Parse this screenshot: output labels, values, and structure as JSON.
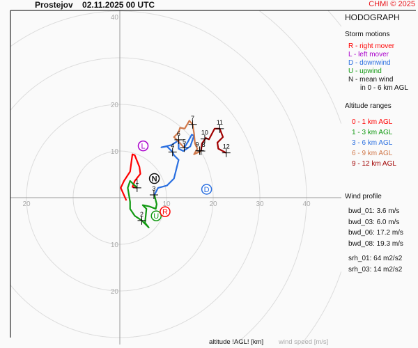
{
  "header": {
    "title": "Prostejov    02.11.2025 00 UTC",
    "copyright": "CHMI © 2025"
  },
  "legend": {
    "title": "HODOGRAPH",
    "storm_motions_title": "Storm motions",
    "storm_motions": [
      {
        "text": "R - right mover",
        "color": "#ff0000"
      },
      {
        "text": "L - left mover",
        "color": "#aa00cc"
      },
      {
        "text": "D - downwind",
        "color": "#2a6fe0"
      },
      {
        "text": "U - upwind",
        "color": "#119911"
      },
      {
        "text": "N - mean wind",
        "color": "#111111"
      },
      {
        "text": "in 0 - 6 km AGL",
        "color": "#111111"
      }
    ],
    "altitude_title": "Altitude ranges",
    "altitude_ranges": [
      {
        "text": "0 - 1 km AGL",
        "color": "#ff0000"
      },
      {
        "text": "1 - 3 km AGL",
        "color": "#119911"
      },
      {
        "text": "3 - 6 km AGL",
        "color": "#2a6fe0"
      },
      {
        "text": "6 - 9 km AGL",
        "color": "#d0784a"
      },
      {
        "text": "9 - 12 km AGL",
        "color": "#a00000"
      }
    ],
    "wind_profile_title": "Wind profile",
    "wind_profile": [
      "bwd_01: 3.6 m/s",
      "bwd_03: 6.0 m/s",
      "bwd_06: 17.2 m/s",
      "bwd_08: 19.3 m/s"
    ],
    "helicity": [
      "srh_01: 64 m2/s2",
      "srh_03: 14 m2/s2"
    ]
  },
  "footer": {
    "altitude_label": "altitude !AGL! [km]",
    "speed_label": "wind speed [m/s]"
  },
  "chart_data": {
    "type": "line",
    "title": "HODOGRAPH",
    "rings": [
      10,
      20,
      30,
      40,
      50,
      60,
      70
    ],
    "x_tick_labels": [
      {
        "v": -20,
        "t": "20"
      },
      {
        "v": 10,
        "t": "10"
      },
      {
        "v": 20,
        "t": "20"
      },
      {
        "v": 30,
        "t": "30"
      },
      {
        "v": 40,
        "t": "40"
      }
    ],
    "y_tick_labels": [
      {
        "v": 40,
        "t": "40"
      },
      {
        "v": 20,
        "t": "20"
      },
      {
        "v": 10,
        "t": "10"
      },
      {
        "v": -10,
        "t": "10"
      },
      {
        "v": -20,
        "t": "20"
      }
    ],
    "series": [
      {
        "name": "0 - 1 km AGL",
        "color": "#ff0000",
        "points": [
          [
            1.4,
            -0.6
          ],
          [
            0.2,
            2.1
          ],
          [
            0.9,
            3.6
          ],
          [
            2.2,
            5.6
          ],
          [
            2.7,
            9.3
          ],
          [
            3.2,
            9.1
          ],
          [
            4.2,
            6.6
          ],
          [
            4.4,
            5.1
          ],
          [
            3.2,
            3.6
          ],
          [
            2.7,
            2.3
          ],
          [
            3.7,
            2.1
          ]
        ]
      },
      {
        "name": "1 - 3 km AGL",
        "color": "#119911",
        "points": [
          [
            3.7,
            2.1
          ],
          [
            2.2,
            3.6
          ],
          [
            1.7,
            2.1
          ],
          [
            2.2,
            -0.9
          ],
          [
            2.2,
            -2.4
          ],
          [
            3.2,
            -3.9
          ],
          [
            4.7,
            -4.9
          ],
          [
            6.2,
            -6.4
          ],
          [
            5.4,
            -5.4
          ],
          [
            5.7,
            -2.4
          ],
          [
            4.9,
            -1.6
          ],
          [
            6.4,
            -1.9
          ],
          [
            7.7,
            -2.4
          ],
          [
            7.9,
            -1.4
          ],
          [
            7.4,
            0.6
          ]
        ]
      },
      {
        "name": "3 - 6 km AGL",
        "color": "#2a6fe0",
        "points": [
          [
            7.4,
            0.6
          ],
          [
            8.2,
            2.1
          ],
          [
            10.1,
            2.6
          ],
          [
            11.6,
            4.1
          ],
          [
            12.1,
            6.1
          ],
          [
            12.6,
            8.1
          ],
          [
            11.6,
            9.1
          ],
          [
            11.3,
            9.8
          ],
          [
            10.1,
            11.0
          ],
          [
            8.9,
            10.8
          ],
          [
            11.1,
            11.3
          ],
          [
            12.6,
            12.3
          ],
          [
            12.6,
            10.5
          ],
          [
            13.6,
            10.0
          ],
          [
            15.1,
            11.0
          ],
          [
            15.9,
            13.3
          ],
          [
            15.4,
            13.5
          ],
          [
            14.6,
            12.0
          ],
          [
            13.8,
            10.7
          ]
        ]
      },
      {
        "name": "6 - 9 km AGL",
        "color": "#d0784a",
        "points": [
          [
            13.8,
            10.7
          ],
          [
            12.6,
            12.0
          ],
          [
            11.6,
            13.0
          ],
          [
            12.6,
            14.0
          ],
          [
            12.9,
            15.0
          ],
          [
            13.9,
            14.8
          ],
          [
            14.9,
            16.5
          ],
          [
            15.6,
            15.7
          ],
          [
            15.9,
            13.8
          ],
          [
            16.1,
            11.6
          ],
          [
            16.6,
            10.5
          ],
          [
            15.9,
            9.3
          ],
          [
            17.4,
            10.0
          ]
        ]
      },
      {
        "name": "9 - 12 km AGL",
        "color": "#a00000",
        "points": [
          [
            17.4,
            10.0
          ],
          [
            17.6,
            11.6
          ],
          [
            18.4,
            12.8
          ],
          [
            19.1,
            12.5
          ],
          [
            20.3,
            14.8
          ],
          [
            21.4,
            14.8
          ],
          [
            22.1,
            13.0
          ],
          [
            20.9,
            11.8
          ],
          [
            21.1,
            10.5
          ],
          [
            22.8,
            9.6
          ]
        ]
      }
    ],
    "altitude_markers": [
      {
        "label": "1",
        "u": 3.7,
        "v": 2.1
      },
      {
        "label": "2",
        "u": 4.7,
        "v": -4.9
      },
      {
        "label": "3",
        "u": 7.3,
        "v": 0.6
      },
      {
        "label": "4",
        "u": 11.3,
        "v": 9.8
      },
      {
        "label": "5",
        "u": 13.8,
        "v": 10.7
      },
      {
        "label": "6",
        "u": 12.6,
        "v": 12.4
      },
      {
        "label": "7",
        "u": 15.6,
        "v": 15.7
      },
      {
        "label": "8",
        "u": 17.4,
        "v": 10.0
      },
      {
        "label": "9",
        "u": 17.1,
        "v": 10.1
      },
      {
        "label": "10",
        "u": 18.2,
        "v": 12.6
      },
      {
        "label": "11",
        "u": 21.4,
        "v": 14.8
      },
      {
        "label": "12",
        "u": 22.8,
        "v": 9.6
      }
    ],
    "storm_motions": [
      {
        "label": "L",
        "u": 5.0,
        "v": 11.1,
        "color": "#aa00cc"
      },
      {
        "label": "N",
        "u": 7.4,
        "v": 4.1,
        "color": "#111111"
      },
      {
        "label": "D",
        "u": 18.6,
        "v": 1.8,
        "color": "#2a6fe0"
      },
      {
        "label": "U",
        "u": 7.8,
        "v": -3.9,
        "color": "#119911"
      },
      {
        "label": "R",
        "u": 9.7,
        "v": -3.0,
        "color": "#ff0000"
      }
    ]
  }
}
